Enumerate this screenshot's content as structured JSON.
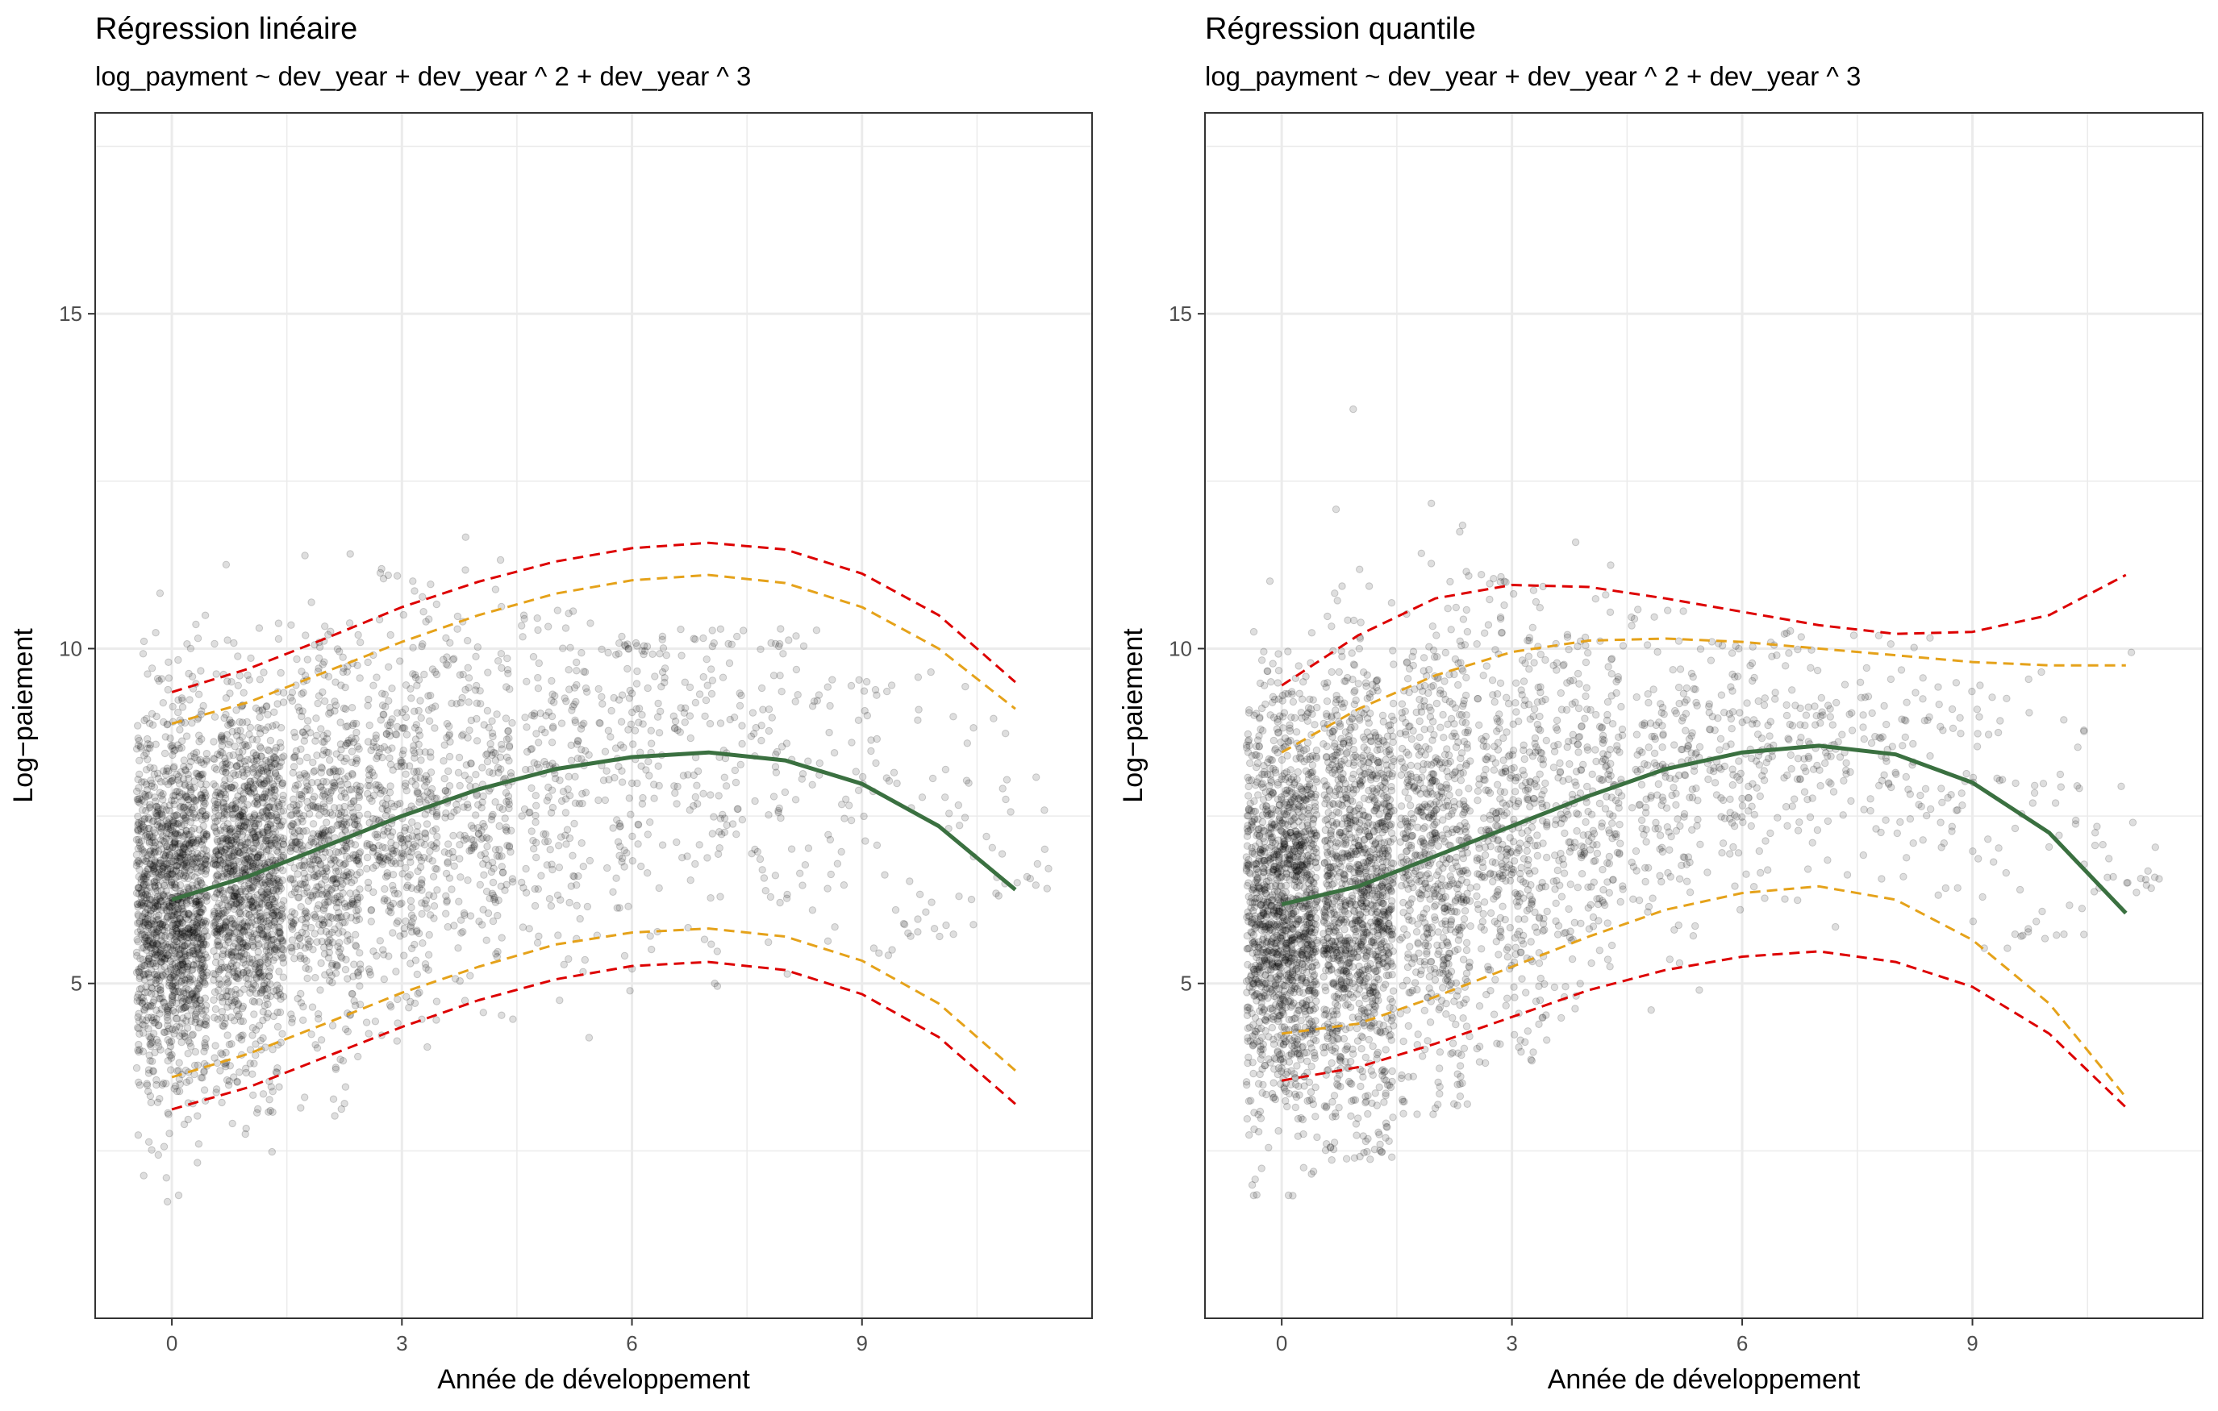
{
  "colors": {
    "points": "#000000",
    "mean_line": "#3a7040",
    "outer_band": "#dd0000",
    "inner_band": "#e5a21a",
    "grid": "#ebebeb",
    "panel_border": "#333333"
  },
  "chart_data": [
    {
      "type": "scatter",
      "title": "Régression linéaire",
      "subtitle": "log_payment ~ dev_year + dev_year ^ 2 + dev_year ^ 3",
      "xlabel": "Année de développement",
      "ylabel": "Log−paiement",
      "xticks": [
        "0",
        "3",
        "6",
        "9"
      ],
      "yticks": [
        "5",
        "10",
        "15"
      ],
      "xlim": [
        -1,
        12
      ],
      "ylim": [
        0,
        18
      ],
      "grid": true,
      "scatter_note_x": [
        0,
        1,
        2,
        3,
        4,
        5,
        6,
        7,
        8,
        9,
        10,
        11
      ],
      "scatter_density": [
        1.0,
        0.85,
        0.45,
        0.28,
        0.18,
        0.12,
        0.09,
        0.07,
        0.05,
        0.035,
        0.025,
        0.015
      ],
      "scatter_range": [
        [
          1.7,
          12.7
        ],
        [
          2.3,
          13.6
        ],
        [
          3.0,
          12.7
        ],
        [
          3.8,
          11.2
        ],
        [
          4.3,
          12.5
        ],
        [
          3.3,
          10.6
        ],
        [
          3.9,
          10.2
        ],
        [
          4.9,
          10.3
        ],
        [
          4.6,
          10.3
        ],
        [
          5.3,
          9.6
        ],
        [
          5.5,
          9.7
        ],
        [
          6.3,
          10.0
        ]
      ],
      "series": [
        {
          "role": "mean",
          "x": [
            0,
            1,
            2,
            3,
            4,
            5,
            6,
            7,
            8,
            9,
            10,
            11
          ],
          "y": [
            6.25,
            6.6,
            7.05,
            7.5,
            7.9,
            8.2,
            8.38,
            8.45,
            8.33,
            7.98,
            7.35,
            6.4
          ]
        },
        {
          "role": "upper_outer",
          "x": [
            0,
            1,
            2,
            3,
            4,
            5,
            6,
            7,
            8,
            9,
            10,
            11
          ],
          "y": [
            9.35,
            9.7,
            10.15,
            10.62,
            11.0,
            11.3,
            11.5,
            11.58,
            11.48,
            11.12,
            10.5,
            9.5
          ]
        },
        {
          "role": "upper_inner",
          "x": [
            0,
            1,
            2,
            3,
            4,
            5,
            6,
            7,
            8,
            9,
            10,
            11
          ],
          "y": [
            8.88,
            9.2,
            9.65,
            10.1,
            10.5,
            10.82,
            11.02,
            11.1,
            10.98,
            10.62,
            10.0,
            9.1
          ]
        },
        {
          "role": "lower_inner",
          "x": [
            0,
            1,
            2,
            3,
            4,
            5,
            6,
            7,
            8,
            9,
            10,
            11
          ],
          "y": [
            3.6,
            3.95,
            4.4,
            4.86,
            5.25,
            5.58,
            5.76,
            5.82,
            5.7,
            5.34,
            4.7,
            3.7
          ]
        },
        {
          "role": "lower_outer",
          "x": [
            0,
            1,
            2,
            3,
            4,
            5,
            6,
            7,
            8,
            9,
            10,
            11
          ],
          "y": [
            3.12,
            3.45,
            3.9,
            4.35,
            4.75,
            5.06,
            5.26,
            5.32,
            5.2,
            4.84,
            4.2,
            3.2
          ]
        }
      ]
    },
    {
      "type": "scatter",
      "title": "Régression quantile",
      "subtitle": "log_payment ~ dev_year + dev_year ^ 2 + dev_year ^ 3",
      "xlabel": "Année de développement",
      "ylabel": "Log−paiement",
      "xticks": [
        "0",
        "3",
        "6",
        "9"
      ],
      "yticks": [
        "5",
        "10",
        "15"
      ],
      "xlim": [
        -1,
        12
      ],
      "ylim": [
        0,
        18
      ],
      "grid": true,
      "scatter_note_x": [
        0,
        1,
        2,
        3,
        4,
        5,
        6,
        7,
        8,
        9,
        10,
        11
      ],
      "scatter_density": [
        1.0,
        0.85,
        0.45,
        0.28,
        0.18,
        0.12,
        0.09,
        0.07,
        0.05,
        0.035,
        0.025,
        0.015
      ],
      "scatter_range": [
        [
          1.7,
          12.7
        ],
        [
          2.3,
          13.6
        ],
        [
          3.0,
          12.7
        ],
        [
          3.8,
          11.2
        ],
        [
          4.3,
          12.5
        ],
        [
          3.3,
          10.6
        ],
        [
          3.9,
          10.2
        ],
        [
          4.9,
          10.3
        ],
        [
          4.6,
          10.3
        ],
        [
          5.3,
          9.6
        ],
        [
          5.5,
          9.7
        ],
        [
          6.3,
          10.0
        ]
      ],
      "series": [
        {
          "role": "mean",
          "x": [
            0,
            1,
            2,
            3,
            4,
            5,
            6,
            7,
            8,
            9,
            10,
            11
          ],
          "y": [
            6.18,
            6.45,
            6.9,
            7.35,
            7.8,
            8.2,
            8.45,
            8.55,
            8.42,
            8.0,
            7.25,
            6.05
          ]
        },
        {
          "role": "upper_outer",
          "x": [
            0,
            1,
            2,
            3,
            4,
            5,
            6,
            7,
            8,
            9,
            10,
            11
          ],
          "y": [
            9.45,
            10.2,
            10.75,
            10.95,
            10.92,
            10.75,
            10.55,
            10.35,
            10.22,
            10.25,
            10.5,
            11.1
          ]
        },
        {
          "role": "upper_inner",
          "x": [
            0,
            1,
            2,
            3,
            4,
            5,
            6,
            7,
            8,
            9,
            10,
            11
          ],
          "y": [
            8.45,
            9.1,
            9.6,
            9.95,
            10.12,
            10.15,
            10.1,
            10.0,
            9.9,
            9.8,
            9.75,
            9.75
          ]
        },
        {
          "role": "lower_inner",
          "x": [
            0,
            1,
            2,
            3,
            4,
            5,
            6,
            7,
            8,
            9,
            10,
            11
          ],
          "y": [
            4.25,
            4.4,
            4.8,
            5.25,
            5.7,
            6.1,
            6.35,
            6.45,
            6.25,
            5.65,
            4.7,
            3.3
          ]
        },
        {
          "role": "lower_outer",
          "x": [
            0,
            1,
            2,
            3,
            4,
            5,
            6,
            7,
            8,
            9,
            10,
            11
          ],
          "y": [
            3.55,
            3.75,
            4.1,
            4.5,
            4.9,
            5.2,
            5.4,
            5.48,
            5.32,
            4.95,
            4.25,
            3.15
          ]
        }
      ]
    }
  ]
}
